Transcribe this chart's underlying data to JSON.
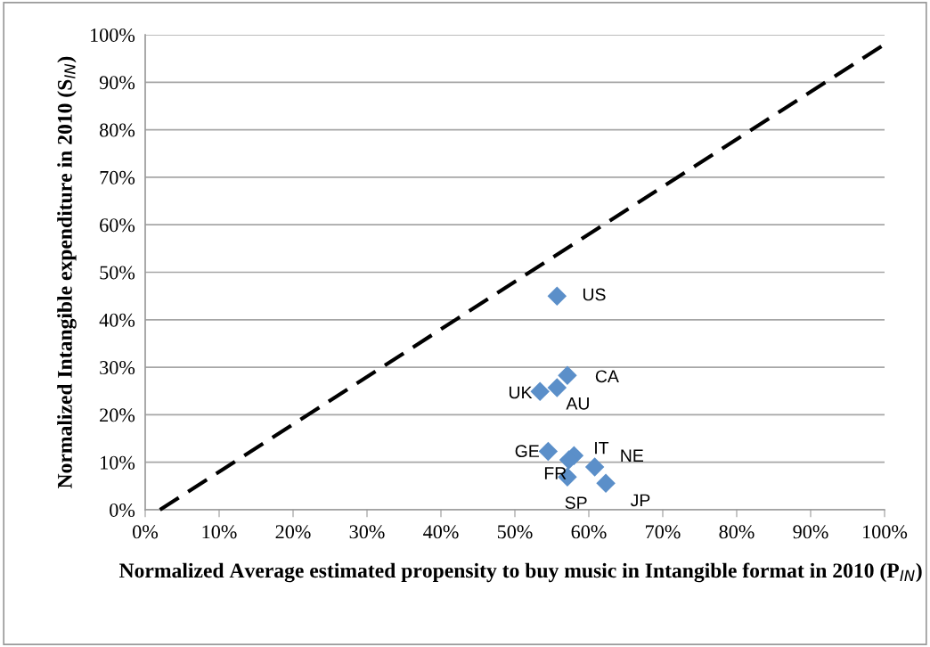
{
  "chart_data": {
    "type": "scatter",
    "xlabel": "Normalized Average estimated propensity to buy music in Intangible format in 2010 (P$_{IN}$)",
    "ylabel": "Normalized Intangible expenditure in 2010 (S$_{IN}$)",
    "series": [
      {
        "color": "#5b8fc9",
        "marker": "diamond",
        "x": [
          55.7,
          57.1,
          55.7,
          53.4,
          54.5,
          58.0,
          57.3,
          57.1,
          60.8,
          62.3
        ],
        "values": [
          45.0,
          28.3,
          25.7,
          24.9,
          12.3,
          11.4,
          10.5,
          6.9,
          9.0,
          5.6
        ],
        "value_labels": [
          "US",
          "CA",
          "AU",
          "UK",
          "GE",
          "IT",
          "FR",
          "SP",
          "NE",
          "JP"
        ]
      },
      {
        "type": "line",
        "color": "#000000",
        "line_style": "dashed",
        "marker": "none",
        "x": [
          2,
          100
        ],
        "values": [
          0,
          98
        ]
      }
    ],
    "xlim": [
      0,
      100
    ],
    "ylim": [
      0,
      100
    ],
    "xticks": [
      {
        "value": 0,
        "label": "0%"
      },
      {
        "value": 10,
        "label": "10%"
      },
      {
        "value": 20,
        "label": "20%"
      },
      {
        "value": 30,
        "label": "30%"
      },
      {
        "value": 40,
        "label": "40%"
      },
      {
        "value": 50,
        "label": "50%"
      },
      {
        "value": 60,
        "label": "60%"
      },
      {
        "value": 70,
        "label": "70%"
      },
      {
        "value": 80,
        "label": "80%"
      },
      {
        "value": 90,
        "label": "90%"
      },
      {
        "value": 100,
        "label": "100%"
      }
    ],
    "yticks": [
      {
        "value": 0,
        "label": "0%"
      },
      {
        "value": 10,
        "label": "10%"
      },
      {
        "value": 20,
        "label": "20%"
      },
      {
        "value": 30,
        "label": "30%"
      },
      {
        "value": 40,
        "label": "40%"
      },
      {
        "value": 50,
        "label": "50%"
      },
      {
        "value": 60,
        "label": "60%"
      },
      {
        "value": 70,
        "label": "70%"
      },
      {
        "value": 80,
        "label": "80%"
      },
      {
        "value": 90,
        "label": "90%"
      },
      {
        "value": 100,
        "label": "100%"
      }
    ],
    "grid": "y",
    "legend": false
  }
}
